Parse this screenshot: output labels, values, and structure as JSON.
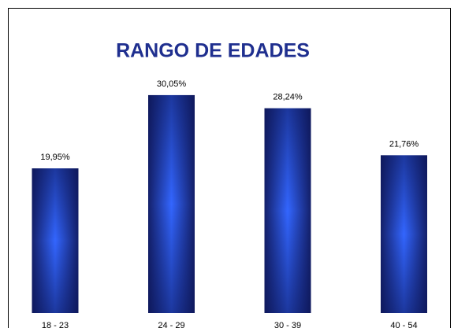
{
  "chart_data": {
    "type": "bar",
    "title": "RANGO DE EDADES",
    "categories": [
      "18 - 23",
      "24 - 29",
      "30 - 39",
      "40 - 54"
    ],
    "values": [
      19.95,
      30.05,
      28.24,
      21.76
    ],
    "value_labels": [
      "19,95%",
      "30,05%",
      "28,24%",
      "21,76%"
    ],
    "color": "#3366ff"
  }
}
